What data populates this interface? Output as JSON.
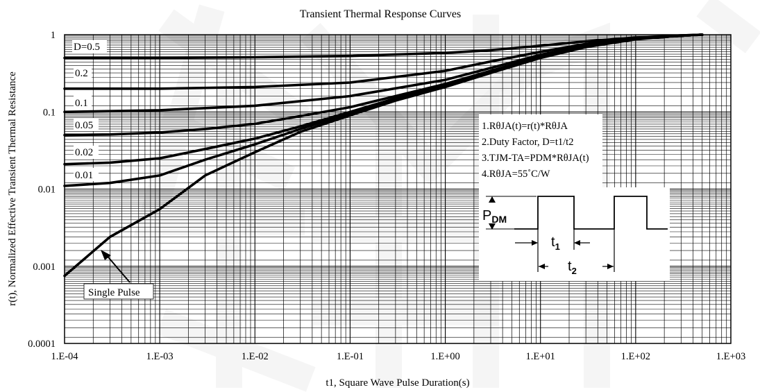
{
  "chart_data": {
    "type": "line",
    "title": "Transient Thermal Response Curves",
    "xlabel": "t1, Square Wave Pulse Duration(s)",
    "ylabel": "r(t), Normalized Effective Transient Thermal Resistance",
    "xscale": "log",
    "yscale": "log",
    "xlim": [
      0.0001,
      1000
    ],
    "ylim": [
      0.0001,
      1
    ],
    "x_tick_labels": [
      "1.E-04",
      "1.E-03",
      "1.E-02",
      "1.E-01",
      "1.E+00",
      "1.E+01",
      "1.E+02",
      "1.E+03"
    ],
    "y_tick_labels": [
      "1",
      "0.1",
      "0.01",
      "0.001",
      "0.0001"
    ],
    "grid": true,
    "series": [
      {
        "name": "D=0.5",
        "x": [
          0.0001,
          0.001,
          0.01,
          0.1,
          1,
          3,
          10,
          30,
          100,
          300,
          500
        ],
        "y": [
          0.5,
          0.5,
          0.51,
          0.53,
          0.58,
          0.63,
          0.72,
          0.82,
          0.92,
          0.98,
          1.0
        ]
      },
      {
        "name": "0.2",
        "x": [
          0.0001,
          0.001,
          0.01,
          0.1,
          1,
          3,
          10,
          30,
          100,
          300,
          500
        ],
        "y": [
          0.2,
          0.2,
          0.21,
          0.24,
          0.34,
          0.45,
          0.6,
          0.76,
          0.9,
          0.98,
          1.0
        ]
      },
      {
        "name": "0.1",
        "x": [
          0.0001,
          0.001,
          0.01,
          0.1,
          1,
          3,
          10,
          30,
          100,
          300,
          500
        ],
        "y": [
          0.1,
          0.105,
          0.12,
          0.16,
          0.26,
          0.37,
          0.55,
          0.73,
          0.89,
          0.97,
          1.0
        ]
      },
      {
        "name": "0.05",
        "x": [
          0.0001,
          0.0003,
          0.001,
          0.003,
          0.01,
          0.03,
          0.1,
          0.3,
          1,
          3,
          10,
          30,
          100,
          300,
          500
        ],
        "y": [
          0.05,
          0.051,
          0.054,
          0.06,
          0.07,
          0.088,
          0.115,
          0.16,
          0.23,
          0.34,
          0.52,
          0.71,
          0.88,
          0.97,
          1.0
        ]
      },
      {
        "name": "0.02",
        "x": [
          0.0001,
          0.0003,
          0.001,
          0.003,
          0.01,
          0.03,
          0.1,
          0.3,
          1,
          3,
          10,
          30,
          100,
          300,
          500
        ],
        "y": [
          0.021,
          0.022,
          0.025,
          0.033,
          0.045,
          0.065,
          0.1,
          0.15,
          0.22,
          0.33,
          0.51,
          0.7,
          0.88,
          0.97,
          1.0
        ]
      },
      {
        "name": "0.01",
        "x": [
          0.0001,
          0.0003,
          0.001,
          0.003,
          0.01,
          0.03,
          0.1,
          0.3,
          1,
          3,
          10,
          30,
          100,
          300,
          500
        ],
        "y": [
          0.011,
          0.012,
          0.015,
          0.024,
          0.038,
          0.06,
          0.095,
          0.145,
          0.215,
          0.33,
          0.51,
          0.7,
          0.88,
          0.97,
          1.0
        ]
      },
      {
        "name": "Single Pulse",
        "x": [
          0.0001,
          0.0003,
          0.001,
          0.003,
          0.01,
          0.03,
          0.1,
          0.3,
          1,
          3,
          10,
          30,
          100,
          300,
          500
        ],
        "y": [
          0.00075,
          0.0024,
          0.0055,
          0.015,
          0.03,
          0.055,
          0.09,
          0.14,
          0.21,
          0.32,
          0.5,
          0.69,
          0.87,
          0.97,
          1.0
        ]
      }
    ],
    "annotations": [
      "1.RθJA(t)=r(t)*RθJA",
      "2.Duty Factor, D=t1/t2",
      "3.TJM-TA=PDM*RθJA(t)",
      "4.RθJA=55˚C/W"
    ],
    "inset": {
      "pdm_label": "P",
      "pdm_sub": "DM",
      "t1_label": "t",
      "t1_sub": "1",
      "t2_label": "t",
      "t2_sub": "2"
    }
  }
}
